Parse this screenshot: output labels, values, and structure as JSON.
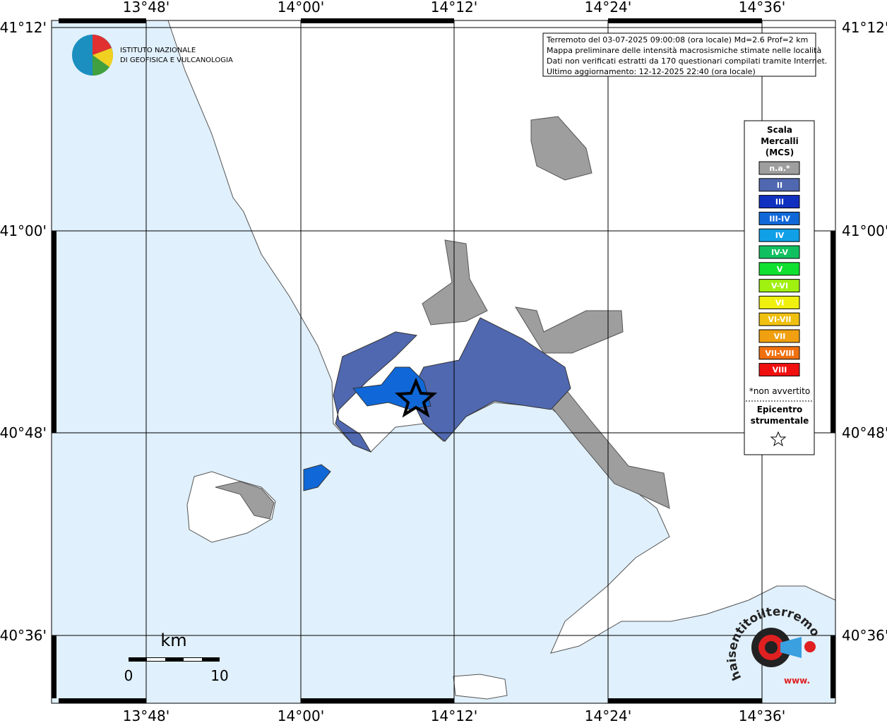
{
  "map": {
    "longitudes": [
      "13°48'",
      "14°00'",
      "14°12'",
      "14°24'",
      "14°36'"
    ],
    "latitudes": [
      "41°12'",
      "41°00'",
      "40°48'",
      "40°36'"
    ],
    "logo": [
      "ISTITUTO NAZIONALE",
      "DI GEOFISICA E VULCANOLOGIA"
    ],
    "info": [
      "Terremoto del 03-07-2025 09:00:08 (ora locale) Md=2.6 Prof=2 km",
      "Mappa preliminare delle intensità macrosismiche stimate nelle località",
      "Dati non verificati estratti da 170 questionari compilati tramite Internet.",
      "Ultimo aggiornamento: 12-12-2025 22:40 (ora locale)"
    ],
    "legend": {
      "title": [
        "Scala",
        "Mercalli",
        "(MCS)"
      ],
      "items": [
        {
          "label": "n.a.*",
          "color": "#9e9e9e"
        },
        {
          "label": "II",
          "color": "#5068b0"
        },
        {
          "label": "III",
          "color": "#1030c0"
        },
        {
          "label": "III-IV",
          "color": "#1068d8"
        },
        {
          "label": "IV",
          "color": "#10a0e8"
        },
        {
          "label": "IV-V",
          "color": "#10c060"
        },
        {
          "label": "V",
          "color": "#10e030"
        },
        {
          "label": "V-VI",
          "color": "#a0f010"
        },
        {
          "label": "VI",
          "color": "#f0f010"
        },
        {
          "label": "VI-VII",
          "color": "#f0c010"
        },
        {
          "label": "VII",
          "color": "#f0a010"
        },
        {
          "label": "VII-VIII",
          "color": "#f07010"
        },
        {
          "label": "VIII",
          "color": "#f01010"
        }
      ],
      "note": "*non avvertito",
      "epicenter": [
        "Epicentro",
        "strumentale"
      ]
    },
    "scale_bar": {
      "unit": "km",
      "start": "0",
      "end": "10"
    },
    "badge": {
      "text": "haisentitoilterremoto.it",
      "www": "www."
    }
  }
}
